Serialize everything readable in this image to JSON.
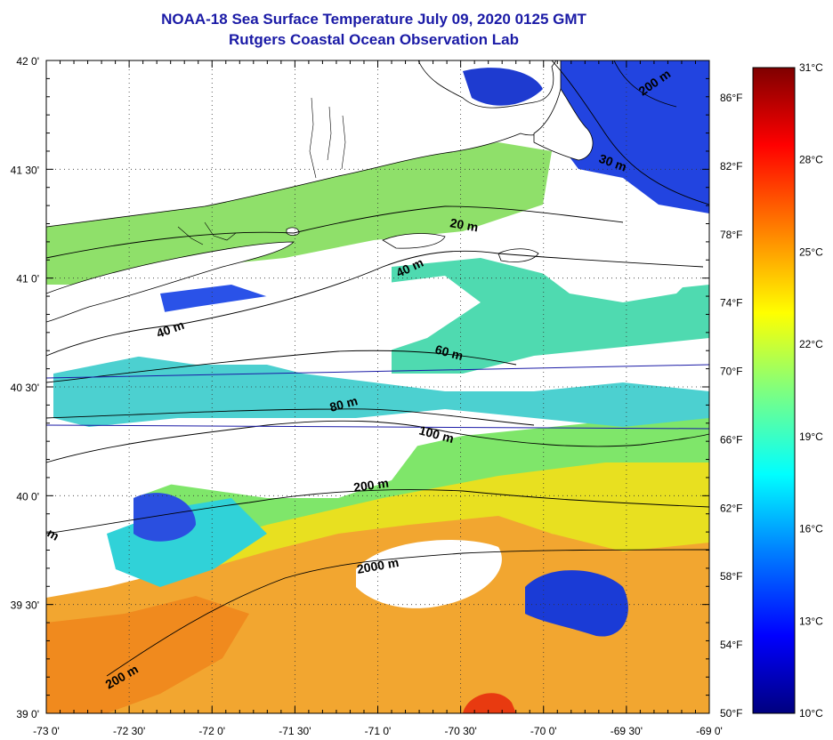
{
  "header": {
    "title": "NOAA-18 Sea Surface Temperature July 09, 2020 0125 GMT",
    "subtitle": "Rutgers Coastal Ocean Observation Lab"
  },
  "map": {
    "lon_ticks": [
      "-73 0'",
      "-72 30'",
      "-72 0'",
      "-71 30'",
      "-71 0'",
      "-70 30'",
      "-70 0'",
      "-69 30'",
      "-69 0'"
    ],
    "lat_ticks": [
      "42 0'",
      "41 30'",
      "41 0'",
      "40 30'",
      "40 0'",
      "39 30'",
      "39 0'"
    ],
    "grid": true,
    "contour_labels": [
      "200 m",
      "30 m",
      "20 m",
      "40 m",
      "40 m",
      "60 m",
      "80 m",
      "100 m",
      "200 m",
      "2000 m",
      "200 m",
      "m"
    ],
    "colors": {
      "land_cloud": "#ffffff",
      "coastline": "#000000",
      "isobath": "#000000",
      "track_line": "#1a1aa6"
    }
  },
  "colorbar": {
    "celsius_labels": [
      "31°C",
      "28°C",
      "25°C",
      "22°C",
      "19°C",
      "16°C",
      "13°C",
      "10°C"
    ],
    "fahrenheit_labels": [
      "86°F",
      "82°F",
      "78°F",
      "74°F",
      "70°F",
      "66°F",
      "62°F",
      "58°F",
      "54°F",
      "50°F"
    ],
    "range_c": [
      10,
      31
    ],
    "stops": [
      "#00007f",
      "#0000ff",
      "#007fff",
      "#00ffff",
      "#7fff7f",
      "#ffff00",
      "#ff7f00",
      "#ff0000",
      "#7f0000"
    ]
  }
}
